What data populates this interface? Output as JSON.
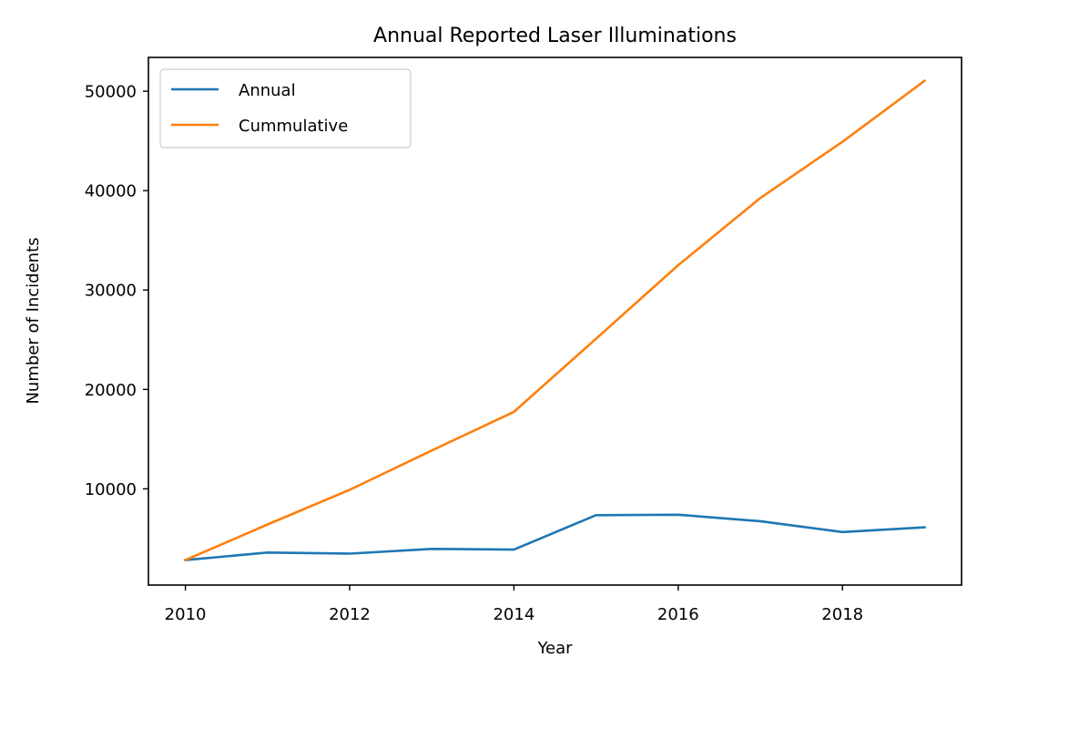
{
  "chart_data": {
    "type": "line",
    "title": "Annual Reported Laser Illuminations",
    "xlabel": "Year",
    "ylabel": "Number of Incidents",
    "x": [
      2010,
      2011,
      2012,
      2013,
      2014,
      2015,
      2016,
      2017,
      2018,
      2019
    ],
    "xticks": [
      "2010",
      "2012",
      "2014",
      "2016",
      "2018"
    ],
    "yticks": [
      "10000",
      "20000",
      "30000",
      "40000",
      "50000"
    ],
    "xlim": [
      2009.55,
      2019.45
    ],
    "ylim": [
      320,
      53400
    ],
    "grid": false,
    "legend_position": "upper-left",
    "series": [
      {
        "name": "Annual",
        "color": "#1f77b4",
        "values": [
          2830,
          3590,
          3480,
          3960,
          3890,
          7350,
          7400,
          6750,
          5660,
          6130
        ]
      },
      {
        "name": "Cummulative",
        "color": "#ff7f0e",
        "values": [
          2830,
          6420,
          9900,
          13860,
          17750,
          25100,
          32500,
          39250,
          44910,
          51040
        ]
      }
    ]
  }
}
